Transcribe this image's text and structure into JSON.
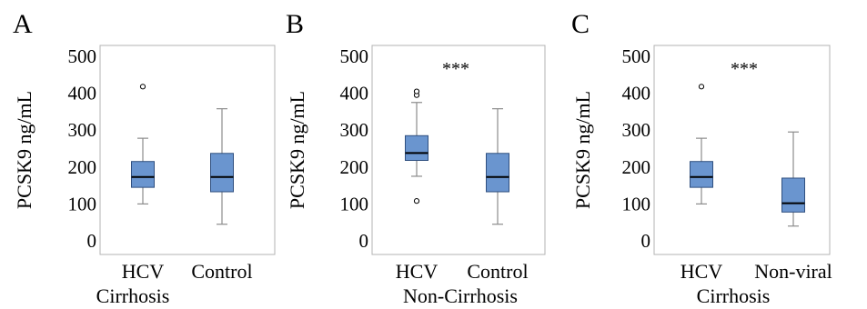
{
  "chart_data": [
    {
      "type": "box",
      "panel_label": "A",
      "ylabel": "PCSK9 ng/mL",
      "ylim": [
        0,
        500
      ],
      "yticks": [
        "0",
        "100",
        "200",
        "300",
        "400",
        "500"
      ],
      "group_label": "Cirrhosis",
      "significance": "",
      "box_color": "#6a95cf",
      "categories": [
        "HCV",
        "Control"
      ],
      "boxes": [
        {
          "whisker_low": 100,
          "q1": 145,
          "median": 173,
          "q3": 215,
          "whisker_high": 278,
          "outliers": [
            418
          ]
        },
        {
          "whisker_low": 45,
          "q1": 133,
          "median": 173,
          "q3": 237,
          "whisker_high": 358,
          "outliers": []
        }
      ]
    },
    {
      "type": "box",
      "panel_label": "B",
      "ylabel": "PCSK9 ng/mL",
      "ylim": [
        0,
        500
      ],
      "yticks": [
        "0",
        "100",
        "200",
        "300",
        "400",
        "500"
      ],
      "group_label": "Non-Cirrhosis",
      "significance": "***",
      "box_color": "#6a95cf",
      "categories": [
        "HCV",
        "Control"
      ],
      "boxes": [
        {
          "whisker_low": 175,
          "q1": 218,
          "median": 238,
          "q3": 285,
          "whisker_high": 375,
          "outliers": [
            108,
            395,
            405
          ]
        },
        {
          "whisker_low": 45,
          "q1": 133,
          "median": 173,
          "q3": 237,
          "whisker_high": 358,
          "outliers": []
        }
      ]
    },
    {
      "type": "box",
      "panel_label": "C",
      "ylabel": "PCSK9 ng/mL",
      "ylim": [
        0,
        500
      ],
      "yticks": [
        "0",
        "100",
        "200",
        "300",
        "400",
        "500"
      ],
      "group_label": "Cirrhosis",
      "significance": "***",
      "box_color": "#6a95cf",
      "categories": [
        "HCV",
        "Non-viral"
      ],
      "boxes": [
        {
          "whisker_low": 100,
          "q1": 145,
          "median": 173,
          "q3": 215,
          "whisker_high": 278,
          "outliers": [
            418
          ]
        },
        {
          "whisker_low": 40,
          "q1": 78,
          "median": 102,
          "q3": 170,
          "whisker_high": 295,
          "outliers": []
        }
      ]
    }
  ]
}
